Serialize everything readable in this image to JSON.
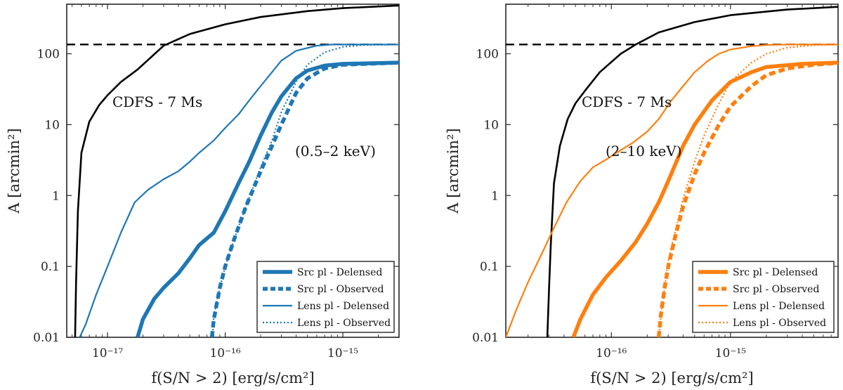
{
  "chart_data": [
    {
      "type": "line",
      "xscale": "log",
      "yscale": "log",
      "xlim": [
        4.5e-18,
        3e-15
      ],
      "ylim": [
        0.01,
        500
      ],
      "xlabel": "f(S/N > 2)  [erg/s/cm²]",
      "ylabel": "A  [arcmin²]",
      "xticks": [
        1e-17,
        1e-16,
        1e-15
      ],
      "xtick_labels": [
        "10⁻¹⁷",
        "10⁻¹⁶",
        "10⁻¹⁵"
      ],
      "yticks": [
        0.01,
        0.1,
        1,
        10,
        100
      ],
      "ytick_labels": [
        "0.01",
        "0.1",
        "1",
        "10",
        "100"
      ],
      "band_label": "(0.5–2 keV)",
      "curve_label": "CDFS - 7 Ms",
      "reference_line": {
        "y": 135,
        "style": "dashed",
        "color": "#000000"
      },
      "legend": {
        "position": "bottom-right"
      },
      "series": [
        {
          "name": "",
          "color": "#000000",
          "style": "solid",
          "width": "thin-black",
          "x": [
            5.3e-18,
            5.4e-18,
            5.6e-18,
            6e-18,
            7e-18,
            8.5e-18,
            1e-17,
            1.3e-17,
            1.8e-17,
            3e-17,
            5e-17,
            1e-16,
            2e-16,
            5e-16,
            1e-15,
            3e-15
          ],
          "y": [
            0.01,
            0.06,
            0.6,
            4,
            11,
            19,
            26,
            40,
            60,
            130,
            190,
            260,
            330,
            400,
            440,
            480
          ]
        },
        {
          "name": "Src pl - Delensed",
          "color": "#1f77b4",
          "style": "solid",
          "width": "thick",
          "x": [
            1.8e-17,
            2e-17,
            2.5e-17,
            3e-17,
            4e-17,
            5e-17,
            6e-17,
            8e-17,
            1e-16,
            1.3e-16,
            1.6e-16,
            2e-16,
            2.5e-16,
            3e-16,
            4e-16,
            5e-16,
            7e-16,
            1e-15,
            3e-15
          ],
          "y": [
            0.01,
            0.018,
            0.035,
            0.05,
            0.08,
            0.13,
            0.2,
            0.3,
            0.6,
            1.5,
            3,
            7,
            15,
            25,
            45,
            58,
            68,
            72,
            75
          ]
        },
        {
          "name": "Src pl - Observed",
          "color": "#1f77b4",
          "style": "dashed",
          "width": "thick",
          "x": [
            7.7e-17,
            8e-17,
            9e-17,
            1e-16,
            1.2e-16,
            1.5e-16,
            2e-16,
            2.5e-16,
            3e-16,
            4e-16,
            5e-16,
            7e-16,
            1e-15,
            3e-15
          ],
          "y": [
            0.01,
            0.018,
            0.05,
            0.1,
            0.25,
            0.7,
            2.2,
            5,
            10,
            28,
            45,
            62,
            70,
            75
          ]
        },
        {
          "name": "Lens pl - Delensed",
          "color": "#1f77b4",
          "style": "solid",
          "width": "thin",
          "x": [
            5.8e-18,
            6.5e-18,
            8e-18,
            1e-17,
            1.3e-17,
            1.7e-17,
            2.2e-17,
            3e-17,
            4e-17,
            5e-17,
            6e-17,
            8e-17,
            1e-16,
            1.3e-16,
            1.6e-16,
            2e-16,
            2.5e-16,
            3e-16,
            4e-16,
            6e-16,
            8e-16,
            1e-15,
            3e-15
          ],
          "y": [
            0.01,
            0.015,
            0.04,
            0.1,
            0.3,
            0.8,
            1.2,
            1.7,
            2.2,
            3,
            4,
            6,
            9,
            14,
            22,
            35,
            55,
            80,
            110,
            130,
            135,
            135,
            135
          ]
        },
        {
          "name": "Lens pl - Observed",
          "color": "#1f77b4",
          "style": "dotted",
          "width": "thin",
          "x": [
            7.8e-17,
            8e-17,
            9e-17,
            1e-16,
            1.2e-16,
            1.5e-16,
            2e-16,
            2.5e-16,
            3e-16,
            4e-16,
            5e-16,
            7e-16,
            1e-15,
            1.5e-15,
            3e-15
          ],
          "y": [
            0.01,
            0.02,
            0.05,
            0.1,
            0.25,
            0.7,
            2.5,
            6,
            15,
            40,
            70,
            105,
            125,
            133,
            135
          ]
        }
      ]
    },
    {
      "type": "line",
      "xscale": "log",
      "yscale": "log",
      "xlim": [
        1.3e-17,
        8e-15
      ],
      "ylim": [
        0.01,
        500
      ],
      "xlabel": "f(S/N > 2)  [erg/s/cm²]",
      "ylabel": "A  [arcmin²]",
      "xticks": [
        1e-16,
        1e-15
      ],
      "xtick_labels": [
        "10⁻¹⁶",
        "10⁻¹⁵"
      ],
      "yticks": [
        0.01,
        0.1,
        1,
        10,
        100
      ],
      "ytick_labels": [
        "0.01",
        "0.1",
        "1",
        "10",
        "100"
      ],
      "band_label": "(2–10 keV)",
      "curve_label": "CDFS - 7 Ms",
      "reference_line": {
        "y": 135,
        "style": "dashed",
        "color": "#000000"
      },
      "legend": {
        "position": "bottom-right"
      },
      "series": [
        {
          "name": "",
          "color": "#000000",
          "style": "solid",
          "width": "thin-black",
          "x": [
            2.9e-17,
            3e-17,
            3.1e-17,
            3.3e-17,
            3.7e-17,
            4.3e-17,
            5e-17,
            6e-17,
            8e-17,
            1.2e-16,
            1.6e-16,
            2.5e-16,
            5e-16,
            1e-15,
            3e-15,
            8e-15
          ],
          "y": [
            0.01,
            0.05,
            0.2,
            1.5,
            5,
            12,
            20,
            30,
            55,
            100,
            135,
            200,
            280,
            350,
            420,
            460
          ]
        },
        {
          "name": "Src pl - Delensed",
          "color": "#ff7f0e",
          "style": "solid",
          "width": "thick",
          "x": [
            4.8e-17,
            5.5e-17,
            7e-17,
            9e-17,
            1.2e-16,
            1.6e-16,
            2e-16,
            2.5e-16,
            3e-16,
            4e-16,
            5e-16,
            7e-16,
            1e-15,
            1.5e-15,
            2e-15,
            4e-15,
            8e-15
          ],
          "y": [
            0.01,
            0.018,
            0.04,
            0.07,
            0.12,
            0.22,
            0.4,
            0.8,
            1.6,
            5,
            10,
            22,
            40,
            55,
            65,
            72,
            75
          ]
        },
        {
          "name": "Src pl - Observed",
          "color": "#ff7f0e",
          "style": "dashed",
          "width": "thick",
          "x": [
            2.5e-16,
            2.6e-16,
            2.8e-16,
            3e-16,
            3.5e-16,
            4e-16,
            5e-16,
            6e-16,
            8e-16,
            1e-15,
            1.5e-15,
            2e-15,
            3e-15,
            5e-15,
            8e-15
          ],
          "y": [
            0.01,
            0.02,
            0.05,
            0.1,
            0.3,
            0.7,
            2,
            4,
            10,
            18,
            35,
            50,
            62,
            70,
            74
          ]
        },
        {
          "name": "Lens pl - Delensed",
          "color": "#ff7f0e",
          "style": "solid",
          "width": "thin",
          "x": [
            1.3e-17,
            1.6e-17,
            2e-17,
            2.6e-17,
            3.3e-17,
            4.2e-17,
            5.5e-17,
            7e-17,
            9e-17,
            1.1e-16,
            1.5e-16,
            2e-16,
            2.5e-16,
            3.2e-16,
            4e-16,
            5e-16,
            6.5e-16,
            8e-16,
            1e-15,
            1.5e-15,
            2e-15,
            3e-15,
            8e-15
          ],
          "y": [
            0.01,
            0.025,
            0.06,
            0.15,
            0.35,
            0.8,
            1.6,
            2.5,
            3.2,
            4,
            5.5,
            8,
            12,
            22,
            35,
            55,
            80,
            100,
            115,
            128,
            133,
            135,
            135
          ]
        },
        {
          "name": "Lens pl - Observed",
          "color": "#ff7f0e",
          "style": "dotted",
          "width": "thin",
          "x": [
            2.5e-16,
            2.6e-16,
            2.8e-16,
            3e-16,
            3.5e-16,
            4e-16,
            5e-16,
            6e-16,
            8e-16,
            1e-15,
            1.5e-15,
            2e-15,
            3e-15,
            5e-15,
            8e-15
          ],
          "y": [
            0.01,
            0.02,
            0.05,
            0.12,
            0.35,
            0.9,
            3,
            7,
            20,
            40,
            75,
            100,
            122,
            132,
            135
          ]
        }
      ]
    }
  ]
}
